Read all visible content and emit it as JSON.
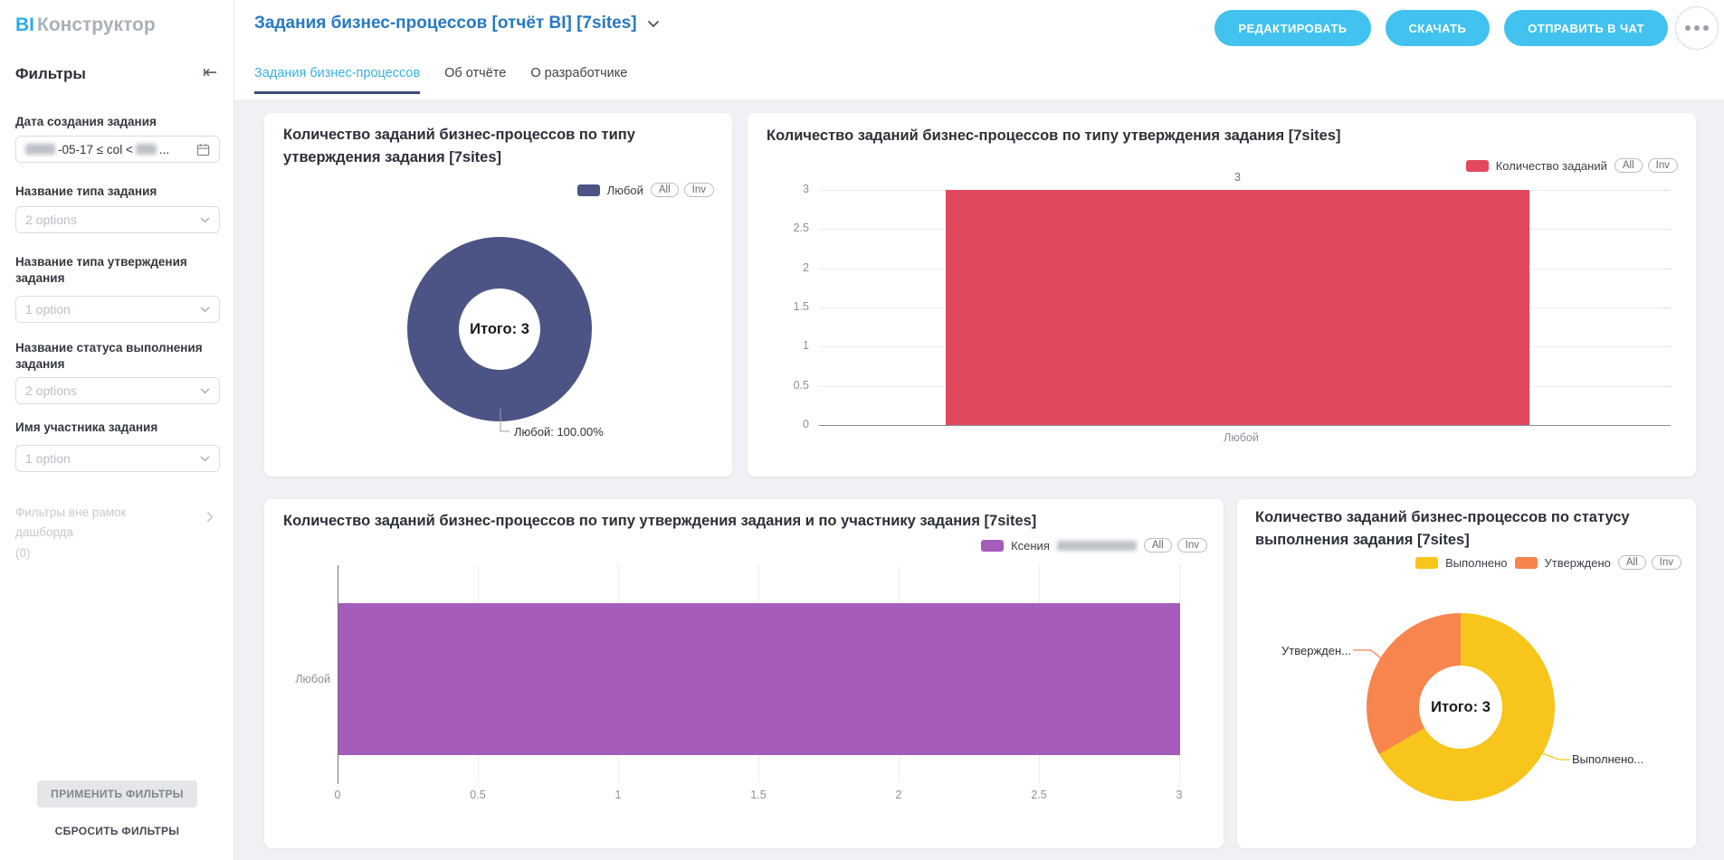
{
  "sidebar": {
    "logo_bi": "BI",
    "logo_name": "Конструктор",
    "panel_title": "Фильтры",
    "filters": [
      {
        "label": "Дата создания задания",
        "type": "date-range",
        "value_visible": "-05-17 ≤ col <",
        "value_tail": "..."
      },
      {
        "label": "Название типа задания",
        "placeholder": "2 options"
      },
      {
        "label": "Название типа утверждения задания",
        "placeholder": "1 option"
      },
      {
        "label": "Название статуса выполнения задания",
        "placeholder": "2 options"
      },
      {
        "label": "Имя участника задания",
        "placeholder": "1 option"
      }
    ],
    "outer_filters_label": "Фильтры вне рамок дашборда",
    "outer_filters_count": "(0)",
    "apply_label": "ПРИМЕНИТЬ ФИЛЬТРЫ",
    "reset_label": "СБРОСИТЬ ФИЛЬТРЫ"
  },
  "header": {
    "title": "Задания бизнес-процессов [отчёт BI] [7sites]",
    "actions": [
      {
        "label": "РЕДАКТИРОВАТЬ"
      },
      {
        "label": "СКАЧАТЬ"
      },
      {
        "label": "ОТПРАВИТЬ В ЧАТ"
      }
    ]
  },
  "tabs": [
    {
      "label": "Задания бизнес-процессов",
      "active": true
    },
    {
      "label": "Об отчёте",
      "active": false
    },
    {
      "label": "О разработчике",
      "active": false
    }
  ],
  "controls": {
    "all": "All",
    "inv": "Inv"
  },
  "charts": {
    "approval_donut": {
      "title": "Количество заданий бизнес-процессов по типу утверждения задания [7sites]",
      "legend": [
        {
          "label": "Любой",
          "color": "#4c5486"
        }
      ],
      "center_label": "Итого: 3",
      "callout": "Любой: 100.00%",
      "chart_data": {
        "type": "pie",
        "categories": [
          "Любой"
        ],
        "values": [
          3
        ],
        "percentages": [
          100.0
        ],
        "total": 3,
        "colors": [
          "#4c5486"
        ],
        "legend_position": "top-right"
      }
    },
    "approval_bar": {
      "title": "Количество заданий бизнес-процессов по типу утверждения задания [7sites]",
      "legend": [
        {
          "label": "Количество заданий",
          "color": "#e2495e"
        }
      ],
      "bar_value_label": "3",
      "chart_data": {
        "type": "bar",
        "categories": [
          "Любой"
        ],
        "values": [
          3
        ],
        "ylim": [
          0,
          3
        ],
        "yticks": [
          0,
          0.5,
          1,
          1.5,
          2,
          2.5,
          3
        ],
        "colors": [
          "#e2495e"
        ],
        "grid": true,
        "legend_position": "top-right"
      }
    },
    "participant_bar": {
      "title": "Количество заданий бизнес-процессов по типу утверждения задания  и по участнику задания [7sites]",
      "legend": [
        {
          "label": "Ксения",
          "suffix_redacted": true,
          "color": "#a55cba"
        }
      ],
      "chart_data": {
        "type": "bar-horizontal",
        "categories": [
          "Любой"
        ],
        "values": [
          3
        ],
        "xlim": [
          0,
          3
        ],
        "xticks": [
          0,
          0.5,
          1,
          1.5,
          2,
          2.5,
          3
        ],
        "colors": [
          "#a55cba"
        ],
        "grid": true,
        "legend_position": "top-right"
      }
    },
    "status_donut": {
      "title": "Количество заданий бизнес-процессов по статусу выполнения задания [7sites]",
      "legend": [
        {
          "label": "Выполнено",
          "color": "#f7c51b"
        },
        {
          "label": "Утверждено",
          "color": "#f7854d"
        }
      ],
      "center_label": "Итого: 3",
      "callout_left": "Утвержден...",
      "callout_right": "Выполнено...",
      "chart_data": {
        "type": "pie",
        "categories": [
          "Выполнено",
          "Утверждено"
        ],
        "values": [
          2,
          1
        ],
        "total": 3,
        "colors": [
          "#f7c51b",
          "#f7854d"
        ],
        "legend_position": "top-right"
      }
    }
  }
}
